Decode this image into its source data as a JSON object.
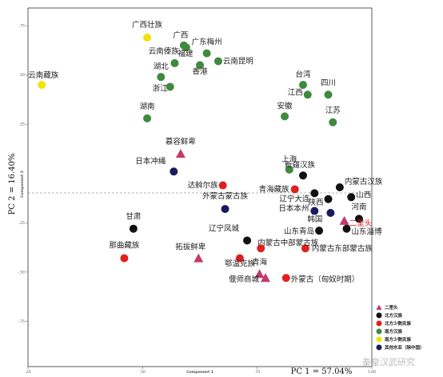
{
  "chart_data": {
    "type": "scatter",
    "xlabel": "PC 1 = 57.04%",
    "ylabel": "PC 2 = 16.40%",
    "xlabel_small": "Component 1",
    "ylabel_small": "Component 2",
    "x_ticks": [
      ".25",
      ".50",
      ".75",
      "1.00"
    ],
    "y_ticks": [
      ".75",
      ".50",
      ".25",
      "-.25",
      "-.50",
      "-.75"
    ],
    "xlim": [
      0.25,
      1.0
    ],
    "ylim": [
      -0.98,
      0.84
    ],
    "zero_line": true,
    "legend_position": "bottom-right",
    "categories": [
      {
        "name": "二里头",
        "color": "#c23a6b",
        "marker": "triangle"
      },
      {
        "name": "北方汉族",
        "color": "#111111",
        "marker": "circle"
      },
      {
        "name": "北方少数民族",
        "color": "#e02020",
        "marker": "circle"
      },
      {
        "name": "南方汉族",
        "color": "#3f8a3f",
        "marker": "circle"
      },
      {
        "name": "南方少数民族",
        "color": "#f2e20a",
        "marker": "circle"
      },
      {
        "name": "其他东亚（除中国）",
        "color": "#1a1a5e",
        "marker": "circle"
      }
    ],
    "points": [
      {
        "label": "广西壮族",
        "x": 0.51,
        "y": 0.69,
        "cat": 4
      },
      {
        "label": "广西",
        "x": 0.59,
        "y": 0.65,
        "cat": 3
      },
      {
        "label": "",
        "x": 0.595,
        "y": 0.64,
        "cat": 4
      },
      {
        "label": "福建",
        "x": 0.57,
        "y": 0.56,
        "cat": 3
      },
      {
        "label": "云南傣族",
        "x": 0.595,
        "y": 0.64,
        "cat": 3
      },
      {
        "label": "广东梅州",
        "x": 0.64,
        "y": 0.61,
        "cat": 3
      },
      {
        "label": "云南昆明",
        "x": 0.665,
        "y": 0.57,
        "cat": 3
      },
      {
        "label": "香港",
        "x": 0.625,
        "y": 0.55,
        "cat": 3
      },
      {
        "label": "湖北",
        "x": 0.54,
        "y": 0.49,
        "cat": 3
      },
      {
        "label": "浙江",
        "x": 0.56,
        "y": 0.44,
        "cat": 3
      },
      {
        "label": "云南藏族",
        "x": 0.28,
        "y": 0.45,
        "cat": 4
      },
      {
        "label": "台湾",
        "x": 0.85,
        "y": 0.45,
        "cat": 3
      },
      {
        "label": "江西",
        "x": 0.86,
        "y": 0.4,
        "cat": 3
      },
      {
        "label": "四川",
        "x": 0.905,
        "y": 0.4,
        "cat": 3
      },
      {
        "label": "湖南",
        "x": 0.51,
        "y": 0.28,
        "cat": 3
      },
      {
        "label": "安徽",
        "x": 0.81,
        "y": 0.29,
        "cat": 3
      },
      {
        "label": "江苏",
        "x": 0.915,
        "y": 0.26,
        "cat": 3
      },
      {
        "label": "慕容鲜卑",
        "x": 0.583,
        "y": 0.1,
        "cat": 0
      },
      {
        "label": "日本冲绳",
        "x": 0.568,
        "y": 0.01,
        "cat": 5
      },
      {
        "label": "上海",
        "x": 0.82,
        "y": 0.02,
        "cat": 3
      },
      {
        "label": "新疆汉族",
        "x": 0.85,
        "y": -0.01,
        "cat": 1
      },
      {
        "label": "达斡尔族",
        "x": 0.675,
        "y": -0.06,
        "cat": 2
      },
      {
        "label": "青海藏族",
        "x": 0.832,
        "y": -0.08,
        "cat": 2
      },
      {
        "label": "内蒙古汉族",
        "x": 0.93,
        "y": -0.07,
        "cat": 1
      },
      {
        "label": "辽宁大连",
        "x": 0.875,
        "y": -0.1,
        "cat": 1
      },
      {
        "label": "陕西",
        "x": 0.905,
        "y": -0.13,
        "cat": 1
      },
      {
        "label": "山西",
        "x": 0.955,
        "y": -0.12,
        "cat": 1
      },
      {
        "label": "外蒙古蒙古族",
        "x": 0.68,
        "y": -0.18,
        "cat": 5
      },
      {
        "label": "日本本州",
        "x": 0.875,
        "y": -0.19,
        "cat": 5
      },
      {
        "label": "韩国",
        "x": 0.91,
        "y": -0.2,
        "cat": 5
      },
      {
        "label": "河南",
        "x": 0.972,
        "y": -0.23,
        "cat": 1
      },
      {
        "label": "二里头",
        "x": 0.94,
        "y": -0.24,
        "cat": 0
      },
      {
        "label": "甘肃",
        "x": 0.48,
        "y": -0.28,
        "cat": 1
      },
      {
        "label": "山东青岛",
        "x": 0.885,
        "y": -0.29,
        "cat": 1
      },
      {
        "label": "山东淄博",
        "x": 0.945,
        "y": -0.28,
        "cat": 1
      },
      {
        "label": "辽宁凤城",
        "x": 0.728,
        "y": -0.34,
        "cat": 1
      },
      {
        "label": "内蒙古中部蒙古族",
        "x": 0.758,
        "y": -0.38,
        "cat": 2
      },
      {
        "label": "内蒙古东部蒙古族",
        "x": 0.855,
        "y": -0.38,
        "cat": 2
      },
      {
        "label": "那曲藏族",
        "x": 0.46,
        "y": -0.43,
        "cat": 2
      },
      {
        "label": "拓拔鲜卑",
        "x": 0.622,
        "y": -0.43,
        "cat": 0
      },
      {
        "label": "鄂温克族",
        "x": 0.712,
        "y": -0.43,
        "cat": 2
      },
      {
        "label": "青海",
        "x": 0.755,
        "y": -0.51,
        "cat": 0
      },
      {
        "label": "偃师商城",
        "x": 0.768,
        "y": -0.53,
        "cat": 0
      },
      {
        "label": "外蒙古（匈奴时期）",
        "x": 0.813,
        "y": -0.53,
        "cat": 2
      }
    ]
  },
  "watermark": "秦皇汉武研究"
}
